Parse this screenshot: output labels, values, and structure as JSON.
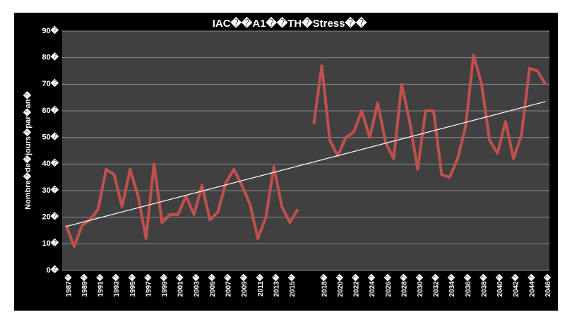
{
  "chart_data": {
    "type": "line",
    "title": "IAC��A1��TH�Stress��",
    "y_label": "Nombre�de�jours�par�an�",
    "categories": [
      "1987�",
      null,
      "1989�",
      null,
      "1991�",
      null,
      "1993�",
      null,
      "1995�",
      null,
      "1997�",
      null,
      "1999�",
      null,
      "2001�",
      null,
      "2003�",
      null,
      "2005�",
      null,
      "2007�",
      null,
      "2009�",
      null,
      "2011�",
      null,
      "2013�",
      null,
      "2015�",
      null,
      null,
      null,
      "2018�",
      null,
      "2020�",
      null,
      "2022�",
      null,
      "2024�",
      null,
      "2026�",
      null,
      "2028�",
      null,
      "2030�",
      null,
      "2032�",
      null,
      "2034�",
      null,
      "2036�",
      null,
      "2038�",
      null,
      "2040�",
      null,
      "2042�",
      null,
      "2044�",
      null,
      "2046�"
    ],
    "series": [
      {
        "color": "#c0504d",
        "values": [
          17,
          9,
          17,
          19,
          23,
          38,
          36,
          24,
          38,
          28,
          12,
          40,
          18,
          21,
          21,
          28,
          21,
          32,
          19,
          22,
          33,
          38,
          32,
          25,
          12,
          20,
          39,
          24,
          18,
          23,
          null,
          55,
          77,
          49,
          43,
          50,
          52,
          60,
          50,
          63,
          48,
          42,
          70,
          56,
          38,
          60,
          60,
          36,
          35,
          42,
          54,
          81,
          70,
          49,
          44,
          56,
          42,
          51,
          76,
          75,
          70
        ]
      }
    ],
    "trendline": {
      "color": "#ffffff",
      "values": [
        16.5,
        63.5
      ]
    },
    "ylim": [
      0,
      90
    ],
    "yticks": [
      {
        "value": 0,
        "label": "0�"
      },
      {
        "value": 10,
        "label": "10�"
      },
      {
        "value": 20,
        "label": "20�"
      },
      {
        "value": 30,
        "label": "30�"
      },
      {
        "value": 40,
        "label": "40�"
      },
      {
        "value": 50,
        "label": "50�"
      },
      {
        "value": 60,
        "label": "60�"
      },
      {
        "value": 70,
        "label": "70�"
      },
      {
        "value": 80,
        "label": "80�"
      },
      {
        "value": 90,
        "label": "90�"
      }
    ],
    "grid": true
  }
}
